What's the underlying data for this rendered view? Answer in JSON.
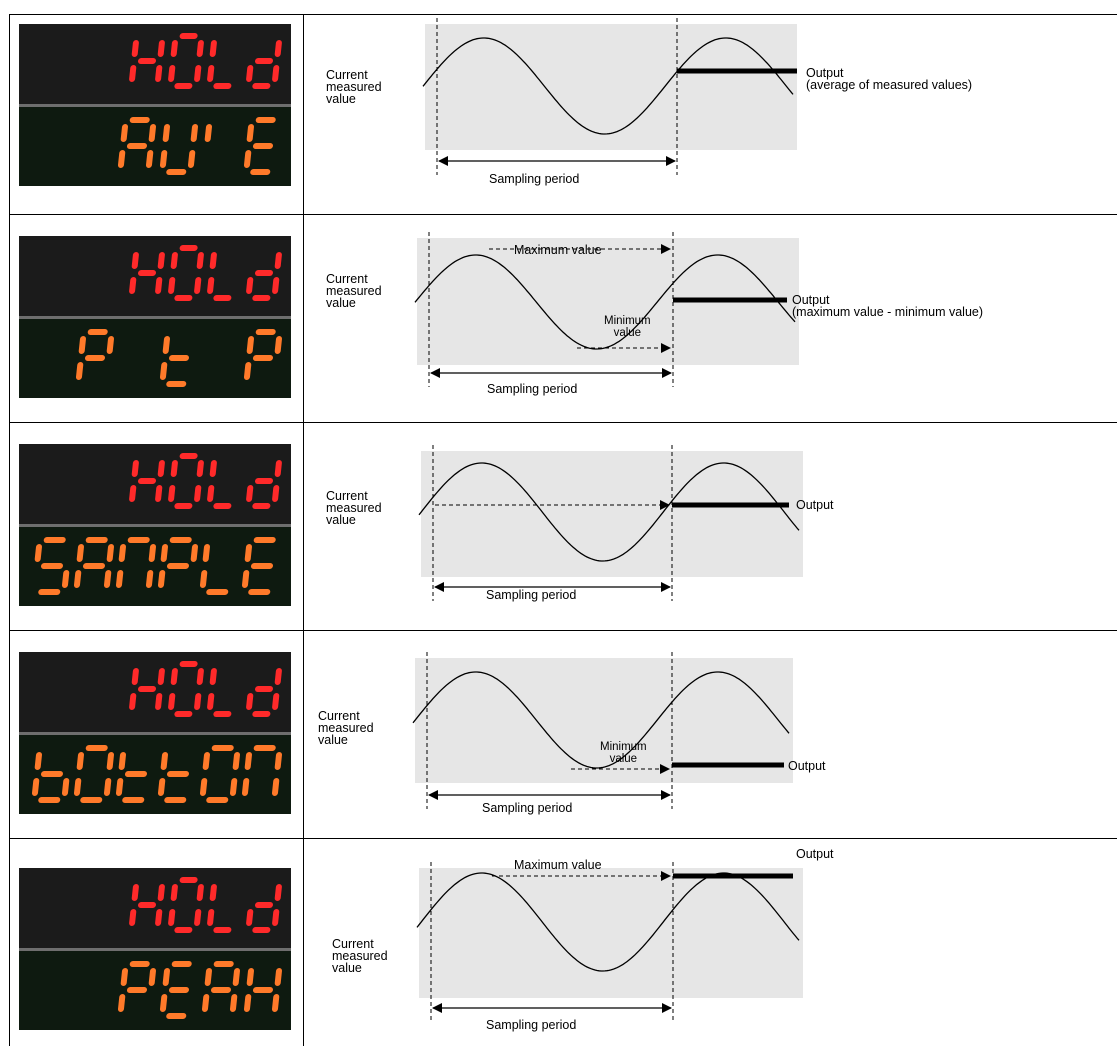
{
  "rows": [
    {
      "mode": "AVE",
      "display_top": "HOLd",
      "display_bottom": "AV'E",
      "left_label": [
        "Current",
        "measured",
        "value"
      ],
      "output_label": "Output",
      "output_note": "(average of measured values)",
      "period_label": "Sampling period"
    },
    {
      "mode": "PtoP",
      "display_top": "HOLd",
      "display_bottom": "P toP",
      "left_label": [
        "Current",
        "measured",
        "value"
      ],
      "max_label": "Maximum value",
      "min_label": [
        "Minimum",
        "value"
      ],
      "output_label": "Output",
      "output_note": "(maximum value - minimum value)",
      "period_label": "Sampling period"
    },
    {
      "mode": "SAMPLE",
      "display_top": "HOLd",
      "display_bottom": "SAMPLE",
      "left_label": [
        "Current",
        "measured",
        "value"
      ],
      "output_label": "Output",
      "period_label": "Sampling period"
    },
    {
      "mode": "bottom",
      "display_top": "HOLd",
      "display_bottom": "bOttOM",
      "left_label": [
        "Current",
        "measured",
        "value"
      ],
      "min_label": [
        "Minimum",
        "value"
      ],
      "output_label": "Output",
      "period_label": "Sampling period"
    },
    {
      "mode": "PEAK",
      "display_top": "HOLd",
      "display_bottom": "PEAK",
      "left_label": [
        "Current",
        "measured",
        "value"
      ],
      "max_label": "Maximum value",
      "output_label": "Output",
      "period_label": "Sampling period"
    }
  ],
  "colors": {
    "lcd_red": "#ff2a2a",
    "lcd_orange": "#ff7a2a",
    "panel_bg": "#e6e6e6"
  }
}
